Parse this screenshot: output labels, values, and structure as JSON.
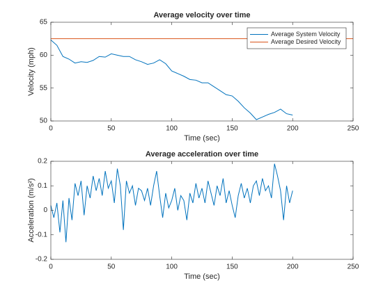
{
  "chart_data": [
    {
      "type": "line",
      "title": "Average velocity over time",
      "xlabel": "Time (sec)",
      "ylabel": "Velocity (mph)",
      "xlim": [
        0,
        250
      ],
      "xticks": [
        0,
        50,
        100,
        150,
        200,
        250
      ],
      "ylim": [
        50,
        65
      ],
      "yticks": [
        50,
        55,
        60,
        65
      ],
      "legend": "northeast",
      "series": [
        {
          "name": "Average System Velocity",
          "color": "#0072bd",
          "x": [
            0,
            5,
            10,
            15,
            20,
            25,
            30,
            35,
            40,
            45,
            50,
            55,
            60,
            65,
            70,
            75,
            80,
            85,
            90,
            95,
            100,
            105,
            110,
            115,
            120,
            125,
            130,
            135,
            140,
            145,
            150,
            155,
            160,
            165,
            170,
            175,
            180,
            185,
            190,
            195,
            200
          ],
          "values": [
            62.3,
            61.5,
            59.8,
            59.4,
            58.8,
            59.0,
            58.9,
            59.2,
            59.8,
            59.7,
            60.2,
            60.0,
            59.8,
            59.8,
            59.3,
            59.0,
            58.6,
            58.8,
            59.3,
            58.7,
            57.6,
            57.2,
            56.8,
            56.3,
            56.2,
            55.8,
            55.8,
            55.2,
            54.6,
            54.0,
            53.8,
            53.0,
            52.0,
            51.2,
            50.2,
            50.6,
            51.0,
            51.3,
            51.8,
            51.1,
            50.9
          ]
        },
        {
          "name": "Average Desired Velocity",
          "color": "#d95319",
          "x": [
            0,
            250
          ],
          "values": [
            62.5,
            62.5
          ]
        }
      ]
    },
    {
      "type": "line",
      "title": "Average acceleration over time",
      "xlabel": "Time (sec)",
      "ylabel": "Acceleration (m/s²)",
      "xlim": [
        0,
        250
      ],
      "xticks": [
        0,
        50,
        100,
        150,
        200,
        250
      ],
      "ylim": [
        -0.2,
        0.2
      ],
      "yticks": [
        -0.2,
        -0.1,
        0,
        0.1,
        0.2
      ],
      "series": [
        {
          "color": "#0072bd",
          "x": [
            0,
            2.5,
            5,
            7.5,
            10,
            12.5,
            15,
            17.5,
            20,
            22.5,
            25,
            27.5,
            30,
            32.5,
            35,
            37.5,
            40,
            42.5,
            45,
            47.5,
            50,
            52.5,
            55,
            57.5,
            60,
            62.5,
            65,
            67.5,
            70,
            72.5,
            75,
            77.5,
            80,
            82.5,
            85,
            87.5,
            90,
            92.5,
            95,
            97.5,
            100,
            102.5,
            105,
            107.5,
            110,
            112.5,
            115,
            117.5,
            120,
            122.5,
            125,
            127.5,
            130,
            132.5,
            135,
            137.5,
            140,
            142.5,
            145,
            147.5,
            150,
            152.5,
            155,
            157.5,
            160,
            162.5,
            165,
            167.5,
            170,
            172.5,
            175,
            177.5,
            180,
            182.5,
            185,
            187.5,
            190,
            192.5,
            195,
            197.5,
            200
          ],
          "values": [
            0.02,
            -0.03,
            0.03,
            -0.09,
            0.04,
            -0.13,
            0.05,
            -0.04,
            0.11,
            0.06,
            0.12,
            -0.02,
            0.1,
            0.05,
            0.14,
            0.08,
            0.13,
            0.06,
            0.16,
            0.09,
            0.12,
            0.03,
            0.17,
            0.1,
            -0.08,
            0.12,
            0.07,
            0.1,
            0.02,
            0.09,
            0.08,
            0.04,
            0.09,
            0.02,
            0.1,
            0.16,
            0.06,
            -0.03,
            0.07,
            0.01,
            0.04,
            0.09,
            0.0,
            0.06,
            0.04,
            -0.04,
            0.07,
            0.03,
            0.11,
            0.05,
            0.09,
            0.03,
            0.12,
            0.07,
            0.02,
            0.1,
            0.06,
            0.13,
            0.03,
            0.08,
            0.02,
            -0.03,
            0.06,
            0.11,
            0.05,
            0.09,
            0.03,
            0.1,
            0.12,
            0.06,
            0.13,
            0.08,
            0.1,
            0.05,
            0.19,
            0.14,
            0.08,
            -0.04,
            0.1,
            0.03,
            0.08
          ]
        }
      ]
    }
  ]
}
